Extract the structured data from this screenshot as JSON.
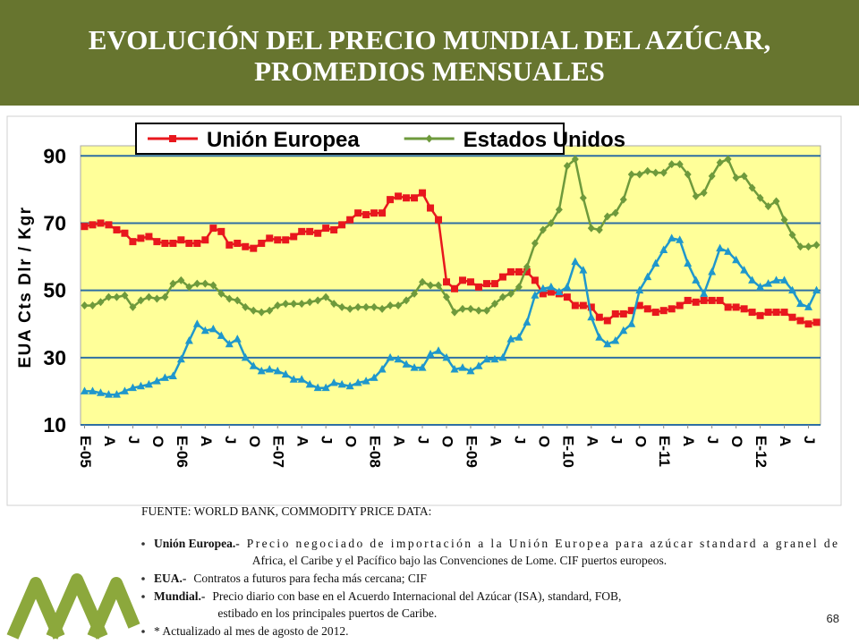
{
  "slide": {
    "title": [
      "EVOLUCIÓN DEL PRECIO MUNDIAL DEL AZÚCAR,",
      "PROMEDIOS MENSUALES"
    ],
    "source": "FUENTE: WORLD BANK, COMMODITY PRICE DATA:",
    "notes": [
      {
        "term": "Unión Europea.-",
        "lines": [
          "Precio negociado de importación a la Unión Europea para azúcar standard a granel de",
          "Africa, el Caribe y el Pacífico bajo las Convenciones de Lome. CIF puertos europeos."
        ]
      },
      {
        "term": "EUA.-",
        "lines": [
          "Contratos a futuros para fecha más cercana; CIF"
        ]
      },
      {
        "term": "Mundial.-",
        "lines": [
          "Precio diario con base en el Acuerdo Internacional del Azúcar (ISA), standard, FOB,",
          "estibado en los principales puertos de Caribe."
        ]
      },
      {
        "lines": [
          "* Actualizado al mes de agosto de 2012."
        ]
      }
    ],
    "page_number": "68"
  },
  "chart_data": {
    "type": "line",
    "y_label": "EUA Cts Dlr / Kgr",
    "categories": [
      "E-05",
      null,
      null,
      "A",
      null,
      null,
      "J",
      null,
      null,
      "O",
      null,
      null,
      "E-06",
      null,
      null,
      "A",
      null,
      null,
      "J",
      null,
      null,
      "O",
      null,
      null,
      "E-07",
      null,
      null,
      "A",
      null,
      null,
      "J",
      null,
      null,
      "O",
      null,
      null,
      "E-08",
      null,
      null,
      "A",
      null,
      null,
      "J",
      null,
      null,
      "O",
      null,
      null,
      "E-09",
      null,
      null,
      "A",
      null,
      null,
      "J",
      null,
      null,
      "O",
      null,
      null,
      "E-10",
      null,
      null,
      "A",
      null,
      null,
      "J",
      null,
      null,
      "O",
      null,
      null,
      "E-11",
      null,
      null,
      "A",
      null,
      null,
      "J",
      null,
      null,
      "O",
      null,
      null,
      "E-12",
      null,
      null,
      "A",
      null,
      null,
      "J",
      null
    ],
    "series": [
      {
        "name": "Unión Europea",
        "color": "#e8171d",
        "marker": "square",
        "values": [
          69,
          69.5,
          70,
          69.5,
          68,
          67,
          64.5,
          65.5,
          66,
          64.5,
          64,
          64,
          65,
          64,
          64,
          65,
          68.5,
          67.5,
          63.5,
          64,
          63,
          62.5,
          64,
          65.5,
          65,
          65,
          66,
          67.5,
          67.5,
          67,
          68.5,
          68,
          69.5,
          71,
          73,
          72.5,
          73,
          73,
          77,
          78,
          77.5,
          77.5,
          79,
          74.5,
          71,
          52.5,
          50.5,
          53,
          52.5,
          51,
          52,
          52,
          54,
          55.5,
          55.5,
          55.5,
          53,
          49,
          49.5,
          49,
          48,
          45.5,
          45.5,
          45,
          42,
          41,
          43,
          43,
          44,
          45.5,
          44.5,
          43.5,
          44,
          44.5,
          45.5,
          47,
          46.5,
          47,
          47,
          47,
          45,
          45,
          44.5,
          43.5,
          42.5,
          43.5,
          43.5,
          43.5,
          42,
          41,
          40,
          40.5
        ]
      },
      {
        "name": "Estados Unidos",
        "color": "#6e9a3c",
        "marker": "diamond",
        "values": [
          45.5,
          45.5,
          46.5,
          48,
          48,
          48.5,
          45,
          47,
          48,
          47.5,
          48,
          52,
          53,
          51,
          52,
          52,
          51.5,
          49,
          47.5,
          47,
          45,
          44,
          43.5,
          44,
          45.5,
          46,
          46,
          46,
          46.5,
          47,
          48,
          46,
          45,
          44.5,
          45,
          45,
          45,
          44.5,
          45.5,
          45.5,
          47,
          49,
          52.5,
          51.5,
          51.5,
          48,
          43.5,
          44.5,
          44.5,
          44,
          44,
          46,
          48,
          49,
          51,
          57,
          64,
          68,
          70,
          74,
          87,
          89,
          77.5,
          68.5,
          68,
          72,
          73,
          77,
          84.5,
          84.5,
          85.5,
          85,
          85,
          87.5,
          87.5,
          84.5,
          78,
          79,
          84,
          88,
          89,
          83.5,
          84,
          80.5,
          77.5,
          75,
          76.5,
          71,
          66.5,
          63,
          63,
          63.5
        ]
      },
      {
        "color": "#1f97cc",
        "marker": "triangle",
        "values": [
          20,
          20,
          19.5,
          19,
          19,
          20,
          21,
          21.5,
          22,
          23,
          24,
          24.5,
          29.5,
          35,
          40,
          38,
          38.5,
          36.5,
          34,
          35.5,
          30,
          27.5,
          26,
          26.5,
          26,
          25,
          23.5,
          23.5,
          22,
          21,
          21,
          22.5,
          22,
          21.5,
          22.5,
          23,
          24,
          26.5,
          30,
          29.5,
          28,
          27,
          27,
          31,
          32,
          30,
          26.5,
          27,
          26,
          27.5,
          29.5,
          29.5,
          30,
          35.5,
          36,
          40.5,
          48.5,
          50.5,
          51,
          49.5,
          51,
          58.5,
          56,
          42,
          36,
          34,
          35,
          38,
          40,
          50,
          54,
          58,
          62,
          65.5,
          65,
          58,
          53,
          49,
          55.5,
          62.5,
          61.5,
          59,
          56,
          53,
          51,
          52,
          53,
          53,
          50,
          46,
          45,
          50
        ]
      }
    ],
    "ylim": [
      10,
      93
    ],
    "yticks": [
      10,
      30,
      50,
      70,
      90
    ],
    "grid": true,
    "legend": "top"
  }
}
